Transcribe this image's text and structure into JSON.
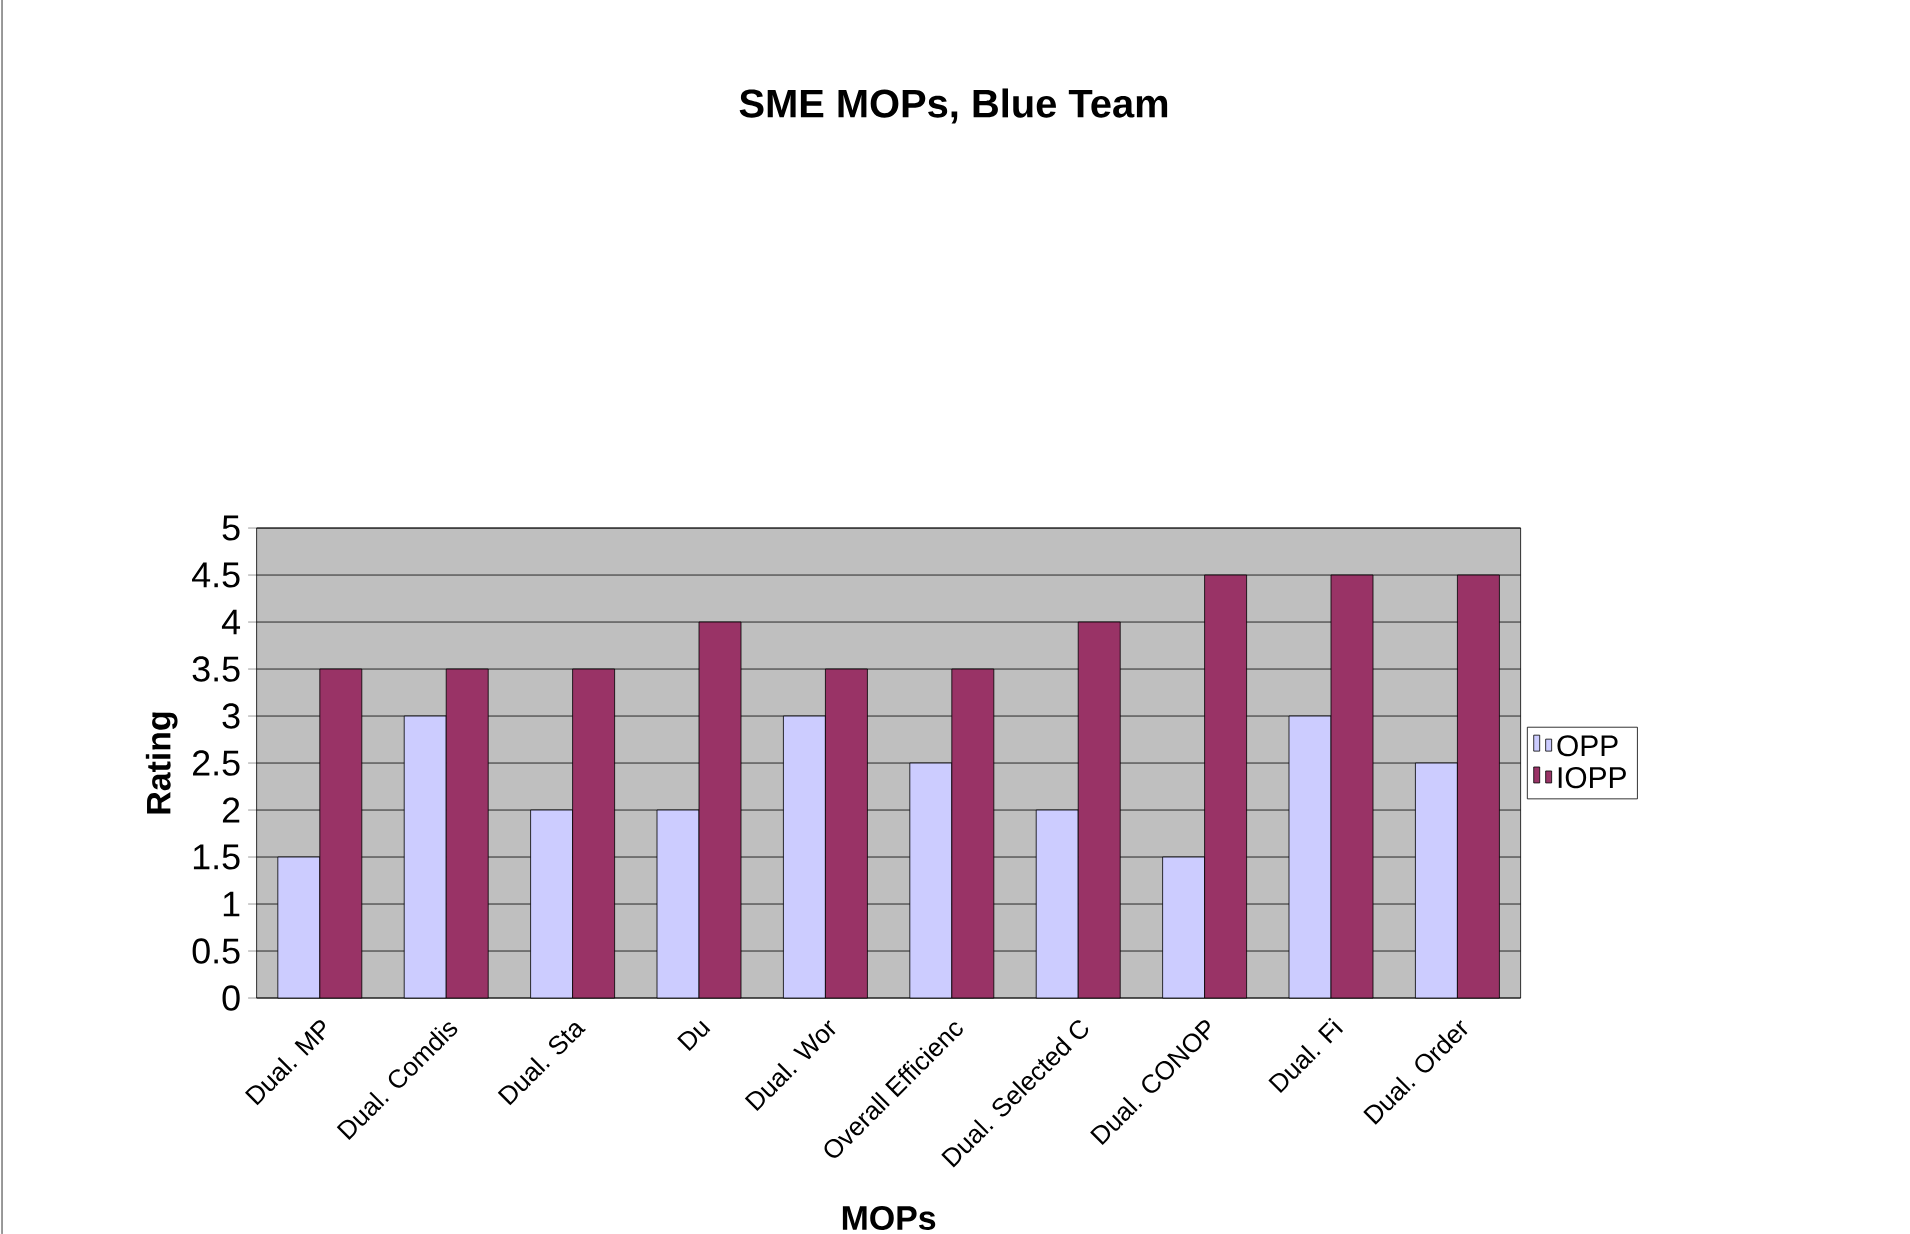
{
  "chart_data": {
    "type": "bar",
    "title": "SME MOPs, Blue Team",
    "xlabel": "MOPs",
    "ylabel": "Rating",
    "categories": [
      "Dual. MP",
      "Dual. Comdis",
      "Dual. Sta",
      "Du",
      "Dual. Wor",
      "Overall Efficienc",
      "Dual. Selected C",
      "Dual. CONOP",
      "Dual. Fi",
      "Dual. Order"
    ],
    "series": [
      {
        "name": "OPP",
        "color": "#ccccff",
        "values": [
          1.5,
          3,
          2,
          2,
          3,
          2.5,
          2,
          1.5,
          3,
          2.5
        ]
      },
      {
        "name": "IOPP",
        "color": "#993366",
        "values": [
          3.5,
          3.5,
          3.5,
          4,
          3.5,
          3.5,
          4,
          4.5,
          4.5,
          4.5
        ]
      }
    ],
    "ylim": [
      0,
      5
    ],
    "yticks": [
      0,
      0.5,
      1,
      1.5,
      2,
      2.5,
      3,
      3.5,
      4,
      4.5,
      5
    ],
    "grid": "y",
    "legend": "right"
  }
}
